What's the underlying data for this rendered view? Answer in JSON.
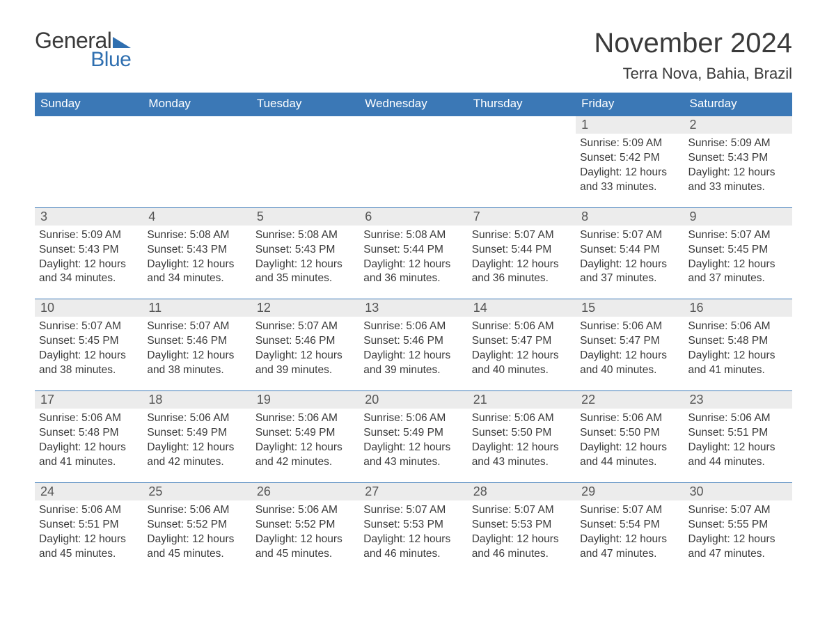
{
  "brand": {
    "name1": "General",
    "name2": "Blue"
  },
  "title": "November 2024",
  "location": "Terra Nova, Bahia, Brazil",
  "colors": {
    "header_bg": "#3b78b6",
    "header_text": "#ffffff",
    "daynum_bg": "#ececec",
    "body_text": "#3a3a3a",
    "page_bg": "#ffffff",
    "rule": "#3b78b6",
    "logo_accent": "#2f6fb0"
  },
  "typography": {
    "title_fontsize": 40,
    "location_fontsize": 22,
    "dow_fontsize": 17,
    "daynum_fontsize": 18,
    "body_fontsize": 15.5,
    "font_family": "Arial"
  },
  "days_of_week": [
    "Sunday",
    "Monday",
    "Tuesday",
    "Wednesday",
    "Thursday",
    "Friday",
    "Saturday"
  ],
  "labels": {
    "sunrise": "Sunrise:",
    "sunset": "Sunset:",
    "daylight": "Daylight:"
  },
  "weeks": [
    [
      null,
      null,
      null,
      null,
      null,
      {
        "n": "1",
        "sunrise": "5:09 AM",
        "sunset": "5:42 PM",
        "daylight_h": 12,
        "daylight_m": 33
      },
      {
        "n": "2",
        "sunrise": "5:09 AM",
        "sunset": "5:43 PM",
        "daylight_h": 12,
        "daylight_m": 33
      }
    ],
    [
      {
        "n": "3",
        "sunrise": "5:09 AM",
        "sunset": "5:43 PM",
        "daylight_h": 12,
        "daylight_m": 34
      },
      {
        "n": "4",
        "sunrise": "5:08 AM",
        "sunset": "5:43 PM",
        "daylight_h": 12,
        "daylight_m": 34
      },
      {
        "n": "5",
        "sunrise": "5:08 AM",
        "sunset": "5:43 PM",
        "daylight_h": 12,
        "daylight_m": 35
      },
      {
        "n": "6",
        "sunrise": "5:08 AM",
        "sunset": "5:44 PM",
        "daylight_h": 12,
        "daylight_m": 36
      },
      {
        "n": "7",
        "sunrise": "5:07 AM",
        "sunset": "5:44 PM",
        "daylight_h": 12,
        "daylight_m": 36
      },
      {
        "n": "8",
        "sunrise": "5:07 AM",
        "sunset": "5:44 PM",
        "daylight_h": 12,
        "daylight_m": 37
      },
      {
        "n": "9",
        "sunrise": "5:07 AM",
        "sunset": "5:45 PM",
        "daylight_h": 12,
        "daylight_m": 37
      }
    ],
    [
      {
        "n": "10",
        "sunrise": "5:07 AM",
        "sunset": "5:45 PM",
        "daylight_h": 12,
        "daylight_m": 38
      },
      {
        "n": "11",
        "sunrise": "5:07 AM",
        "sunset": "5:46 PM",
        "daylight_h": 12,
        "daylight_m": 38
      },
      {
        "n": "12",
        "sunrise": "5:07 AM",
        "sunset": "5:46 PM",
        "daylight_h": 12,
        "daylight_m": 39
      },
      {
        "n": "13",
        "sunrise": "5:06 AM",
        "sunset": "5:46 PM",
        "daylight_h": 12,
        "daylight_m": 39
      },
      {
        "n": "14",
        "sunrise": "5:06 AM",
        "sunset": "5:47 PM",
        "daylight_h": 12,
        "daylight_m": 40
      },
      {
        "n": "15",
        "sunrise": "5:06 AM",
        "sunset": "5:47 PM",
        "daylight_h": 12,
        "daylight_m": 40
      },
      {
        "n": "16",
        "sunrise": "5:06 AM",
        "sunset": "5:48 PM",
        "daylight_h": 12,
        "daylight_m": 41
      }
    ],
    [
      {
        "n": "17",
        "sunrise": "5:06 AM",
        "sunset": "5:48 PM",
        "daylight_h": 12,
        "daylight_m": 41
      },
      {
        "n": "18",
        "sunrise": "5:06 AM",
        "sunset": "5:49 PM",
        "daylight_h": 12,
        "daylight_m": 42
      },
      {
        "n": "19",
        "sunrise": "5:06 AM",
        "sunset": "5:49 PM",
        "daylight_h": 12,
        "daylight_m": 42
      },
      {
        "n": "20",
        "sunrise": "5:06 AM",
        "sunset": "5:49 PM",
        "daylight_h": 12,
        "daylight_m": 43
      },
      {
        "n": "21",
        "sunrise": "5:06 AM",
        "sunset": "5:50 PM",
        "daylight_h": 12,
        "daylight_m": 43
      },
      {
        "n": "22",
        "sunrise": "5:06 AM",
        "sunset": "5:50 PM",
        "daylight_h": 12,
        "daylight_m": 44
      },
      {
        "n": "23",
        "sunrise": "5:06 AM",
        "sunset": "5:51 PM",
        "daylight_h": 12,
        "daylight_m": 44
      }
    ],
    [
      {
        "n": "24",
        "sunrise": "5:06 AM",
        "sunset": "5:51 PM",
        "daylight_h": 12,
        "daylight_m": 45
      },
      {
        "n": "25",
        "sunrise": "5:06 AM",
        "sunset": "5:52 PM",
        "daylight_h": 12,
        "daylight_m": 45
      },
      {
        "n": "26",
        "sunrise": "5:06 AM",
        "sunset": "5:52 PM",
        "daylight_h": 12,
        "daylight_m": 45
      },
      {
        "n": "27",
        "sunrise": "5:07 AM",
        "sunset": "5:53 PM",
        "daylight_h": 12,
        "daylight_m": 46
      },
      {
        "n": "28",
        "sunrise": "5:07 AM",
        "sunset": "5:53 PM",
        "daylight_h": 12,
        "daylight_m": 46
      },
      {
        "n": "29",
        "sunrise": "5:07 AM",
        "sunset": "5:54 PM",
        "daylight_h": 12,
        "daylight_m": 47
      },
      {
        "n": "30",
        "sunrise": "5:07 AM",
        "sunset": "5:55 PM",
        "daylight_h": 12,
        "daylight_m": 47
      }
    ]
  ]
}
